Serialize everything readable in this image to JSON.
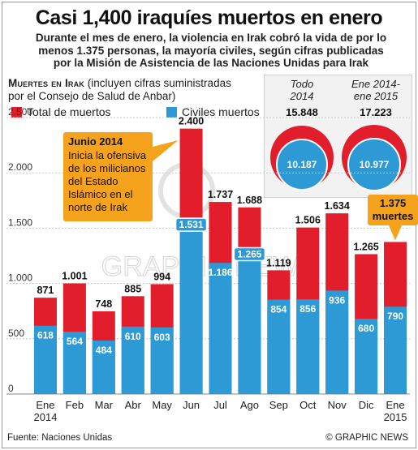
{
  "header": {
    "title": "Casi 1,400 iraquíes muertos en enero",
    "subtitle_lines": [
      "Durante el mes de enero, la violencia en Irak cobró la vida de por lo",
      "menos 1.375 personas, la mayoría civiles, según cifras publicadas",
      "por la Misión de Asistencia de las Naciones Unidas para Irak"
    ]
  },
  "panel": {
    "heading_caps": "Muertes en Irak",
    "heading_rest": " (incluyen cifras suministradas",
    "heading_line2": "por el Consejo de Salud de Anbar)"
  },
  "legend": {
    "total_label": "Total de muertos",
    "civil_label": "Civiles muertos"
  },
  "totals": [
    {
      "label_line1": "Todo",
      "label_line2": "2014",
      "total": "15.848",
      "civilians": "10.187"
    },
    {
      "label_line1": "Ene 2014-",
      "label_line2": "ene 2015",
      "total": "17.223",
      "civilians": "10.977"
    }
  ],
  "annotations": {
    "june": {
      "title": "Junio 2014",
      "lines": [
        "Inicia la ofensiva",
        "de los milicianos",
        "del Estado",
        "Islámico en el",
        "norte de Irak"
      ]
    },
    "january": {
      "lines": [
        "1.375",
        "muertes"
      ]
    }
  },
  "footer": {
    "source": "Fuente: Naciones Unidas",
    "copyright": "© GRAPHIC NEWS"
  },
  "watermark": "GRAPHIC NEWS",
  "colors": {
    "total": "#e31e2c",
    "civil": "#2d9ad6",
    "annotation": "#f5a31c",
    "grid": "#c8c8c8"
  },
  "chart_data": {
    "type": "bar",
    "categories": [
      "Ene 2014",
      "Feb",
      "Mar",
      "Abr",
      "May",
      "Jun",
      "Jul",
      "Ago",
      "Sep",
      "Oct",
      "Nov",
      "Dic",
      "Ene 2015"
    ],
    "category_labels": [
      [
        "Ene",
        "2014"
      ],
      [
        "Feb"
      ],
      [
        "Mar"
      ],
      [
        "Abr"
      ],
      [
        "May"
      ],
      [
        "Jun"
      ],
      [
        "Jul"
      ],
      [
        "Ago"
      ],
      [
        "Sep"
      ],
      [
        "Oct"
      ],
      [
        "Nov"
      ],
      [
        "Dic"
      ],
      [
        "Ene",
        "2015"
      ]
    ],
    "series": [
      {
        "name": "Total de muertos",
        "values": [
          871,
          1001,
          748,
          885,
          994,
          2400,
          1737,
          1688,
          1119,
          1506,
          1634,
          1265,
          1375
        ]
      },
      {
        "name": "Civiles muertos",
        "values": [
          618,
          564,
          484,
          610,
          603,
          1531,
          1186,
          1265,
          854,
          856,
          936,
          680,
          790
        ]
      }
    ],
    "total_labels": [
      "871",
      "1.001",
      "748",
      "885",
      "994",
      "2.400",
      "1.737",
      "1.688",
      "1.119",
      "1.506",
      "1.634",
      "1.265",
      ""
    ],
    "civil_labels": [
      "618",
      "564",
      "484",
      "610",
      "603",
      "1.531",
      "1.186",
      "1.265",
      "854",
      "856",
      "936",
      "680",
      "790"
    ],
    "yticks": [
      0,
      500,
      1000,
      1500,
      2000,
      2500
    ],
    "ytick_labels": [
      "0",
      "500",
      "1.000",
      "1.500",
      "2.000",
      "2.500"
    ],
    "ylim": [
      0,
      2500
    ],
    "grid": true,
    "legend": "top-left",
    "xlabel": "",
    "ylabel": ""
  }
}
